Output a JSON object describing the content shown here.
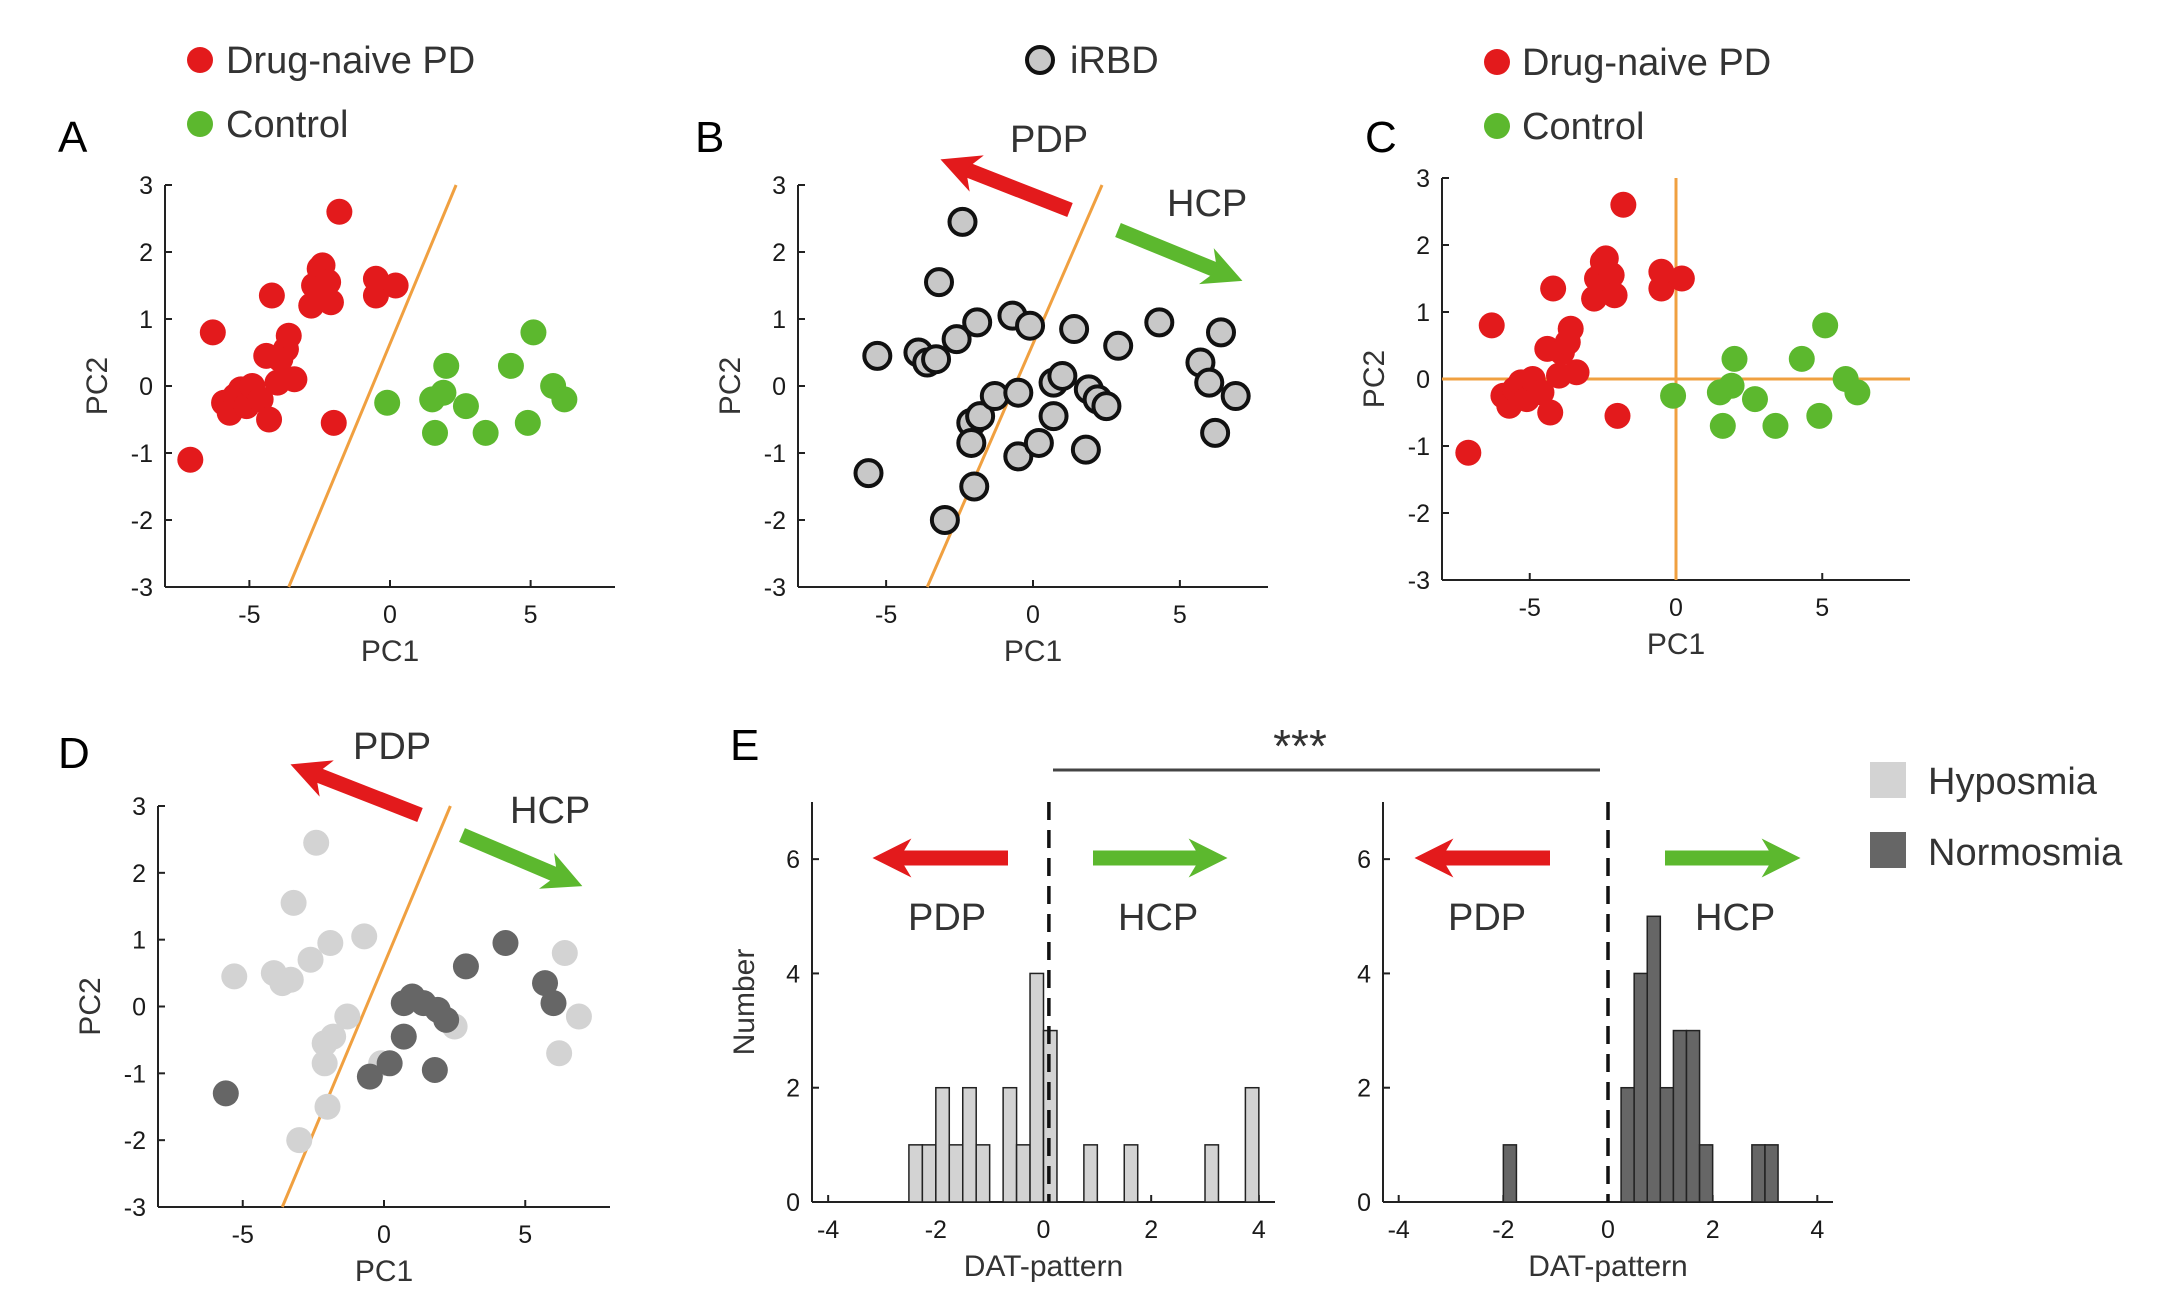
{
  "colors": {
    "pd": "#e31a1c",
    "control": "#5cb82e",
    "irbd_fill": "#c8c8c8",
    "irbd_edge": "#111111",
    "hyposmia": "#d3d3d3",
    "normosmia": "#666666",
    "orange_line": "#f0a040",
    "axis": "#222222"
  },
  "legends": {
    "top_left": [
      {
        "label": "Drug-naive PD",
        "color": "#e31a1c"
      },
      {
        "label": "Control",
        "color": "#5cb82e"
      }
    ],
    "top_center": [
      {
        "label": "iRBD",
        "color": "#c8c8c8"
      }
    ],
    "top_right": [
      {
        "label": "Drug-naive PD",
        "color": "#e31a1c"
      },
      {
        "label": "Control",
        "color": "#5cb82e"
      }
    ],
    "right": [
      {
        "label": "Hyposmia",
        "color": "#d3d3d3"
      },
      {
        "label": "Normosmia",
        "color": "#666666"
      }
    ]
  },
  "panel_labels": [
    "A",
    "B",
    "C",
    "D",
    "E"
  ],
  "arrow_labels": {
    "pdp": "PDP",
    "hcp": "HCP"
  },
  "significance": "***",
  "chart_data": [
    {
      "id": "A",
      "type": "scatter",
      "xlabel": "PC1",
      "ylabel": "PC2",
      "xlim": [
        -8,
        8
      ],
      "ylim": [
        -3,
        3
      ],
      "xticks": [
        -5,
        0,
        5
      ],
      "yticks": [
        -3,
        -2,
        -1,
        0,
        1,
        2,
        3
      ],
      "separator_line": [
        [
          -3.6,
          -3
        ],
        [
          2.35,
          3
        ]
      ],
      "series": [
        {
          "name": "Drug-naive PD",
          "color": "#e31a1c",
          "points": [
            [
              -7.1,
              -1.1
            ],
            [
              -6.3,
              0.8
            ],
            [
              -5.9,
              -0.25
            ],
            [
              -5.7,
              -0.4
            ],
            [
              -5.5,
              -0.15
            ],
            [
              -5.3,
              -0.05
            ],
            [
              -5.1,
              -0.3
            ],
            [
              -4.9,
              0.0
            ],
            [
              -4.6,
              -0.2
            ],
            [
              -4.3,
              -0.5
            ],
            [
              -4.4,
              0.45
            ],
            [
              -4.2,
              1.35
            ],
            [
              -4.0,
              0.05
            ],
            [
              -3.9,
              0.4
            ],
            [
              -3.7,
              0.55
            ],
            [
              -3.6,
              0.75
            ],
            [
              -3.4,
              0.1
            ],
            [
              -2.8,
              1.2
            ],
            [
              -2.7,
              1.5
            ],
            [
              -2.5,
              1.75
            ],
            [
              -2.4,
              1.8
            ],
            [
              -2.2,
              1.55
            ],
            [
              -2.1,
              1.25
            ],
            [
              -2.0,
              -0.55
            ],
            [
              -1.8,
              2.6
            ],
            [
              -0.5,
              1.35
            ],
            [
              -0.5,
              1.6
            ],
            [
              0.2,
              1.5
            ]
          ]
        },
        {
          "name": "Control",
          "color": "#5cb82e",
          "points": [
            [
              -0.1,
              -0.25
            ],
            [
              1.5,
              -0.2
            ],
            [
              1.6,
              -0.7
            ],
            [
              1.9,
              -0.1
            ],
            [
              2.0,
              0.3
            ],
            [
              2.7,
              -0.3
            ],
            [
              3.4,
              -0.7
            ],
            [
              4.3,
              0.3
            ],
            [
              4.9,
              -0.55
            ],
            [
              5.1,
              0.8
            ],
            [
              5.8,
              0.0
            ],
            [
              6.2,
              -0.2
            ]
          ]
        }
      ]
    },
    {
      "id": "B",
      "type": "scatter",
      "xlabel": "PC1",
      "ylabel": "PC2",
      "xlim": [
        -8,
        8
      ],
      "ylim": [
        -3,
        3
      ],
      "xticks": [
        -5,
        0,
        5
      ],
      "yticks": [
        -3,
        -2,
        -1,
        0,
        1,
        2,
        3
      ],
      "separator_line": [
        [
          -3.6,
          -3
        ],
        [
          2.35,
          3
        ]
      ],
      "series": [
        {
          "name": "iRBD",
          "color": "#c8c8c8",
          "points": [
            [
              -5.6,
              -1.3
            ],
            [
              -5.3,
              0.45
            ],
            [
              -3.9,
              0.5
            ],
            [
              -3.6,
              0.35
            ],
            [
              -3.3,
              0.4
            ],
            [
              -3.2,
              1.55
            ],
            [
              -3.0,
              -2.0
            ],
            [
              -2.6,
              0.7
            ],
            [
              -2.4,
              2.45
            ],
            [
              -2.1,
              -0.55
            ],
            [
              -2.1,
              -0.85
            ],
            [
              -2.0,
              -1.5
            ],
            [
              -1.9,
              0.95
            ],
            [
              -1.8,
              -0.45
            ],
            [
              -1.3,
              -0.15
            ],
            [
              -0.7,
              1.05
            ],
            [
              -0.5,
              -1.05
            ],
            [
              -0.5,
              -0.1
            ],
            [
              -0.1,
              0.9
            ],
            [
              0.2,
              -0.85
            ],
            [
              0.7,
              -0.45
            ],
            [
              0.7,
              0.05
            ],
            [
              1.0,
              0.15
            ],
            [
              1.4,
              0.85
            ],
            [
              1.8,
              -0.95
            ],
            [
              1.9,
              -0.05
            ],
            [
              2.2,
              -0.2
            ],
            [
              2.5,
              -0.3
            ],
            [
              2.9,
              0.6
            ],
            [
              4.3,
              0.95
            ],
            [
              5.7,
              0.35
            ],
            [
              6.0,
              0.05
            ],
            [
              6.2,
              -0.7
            ],
            [
              6.4,
              0.8
            ],
            [
              6.9,
              -0.15
            ]
          ]
        }
      ]
    },
    {
      "id": "C",
      "type": "scatter",
      "xlabel": "PC1",
      "ylabel": "PC2",
      "xlim": [
        -8,
        8
      ],
      "ylim": [
        -3,
        3
      ],
      "xticks": [
        -5,
        0,
        5
      ],
      "yticks": [
        -3,
        -2,
        -1,
        0,
        1,
        2,
        3
      ],
      "reference_lines": {
        "x": 0,
        "y": 0
      },
      "series": [
        {
          "name": "Drug-naive PD",
          "color": "#e31a1c",
          "points": [
            [
              -7.1,
              -1.1
            ],
            [
              -6.3,
              0.8
            ],
            [
              -5.9,
              -0.25
            ],
            [
              -5.7,
              -0.4
            ],
            [
              -5.5,
              -0.15
            ],
            [
              -5.3,
              -0.05
            ],
            [
              -5.1,
              -0.3
            ],
            [
              -4.9,
              0.0
            ],
            [
              -4.6,
              -0.2
            ],
            [
              -4.3,
              -0.5
            ],
            [
              -4.4,
              0.45
            ],
            [
              -4.2,
              1.35
            ],
            [
              -4.0,
              0.05
            ],
            [
              -3.9,
              0.4
            ],
            [
              -3.7,
              0.55
            ],
            [
              -3.6,
              0.75
            ],
            [
              -3.4,
              0.1
            ],
            [
              -2.8,
              1.2
            ],
            [
              -2.7,
              1.5
            ],
            [
              -2.5,
              1.75
            ],
            [
              -2.4,
              1.8
            ],
            [
              -2.2,
              1.55
            ],
            [
              -2.1,
              1.25
            ],
            [
              -2.0,
              -0.55
            ],
            [
              -1.8,
              2.6
            ],
            [
              -0.5,
              1.35
            ],
            [
              -0.5,
              1.6
            ],
            [
              0.2,
              1.5
            ]
          ]
        },
        {
          "name": "Control",
          "color": "#5cb82e",
          "points": [
            [
              -0.1,
              -0.25
            ],
            [
              1.5,
              -0.2
            ],
            [
              1.6,
              -0.7
            ],
            [
              1.9,
              -0.1
            ],
            [
              2.0,
              0.3
            ],
            [
              2.7,
              -0.3
            ],
            [
              3.4,
              -0.7
            ],
            [
              4.3,
              0.3
            ],
            [
              4.9,
              -0.55
            ],
            [
              5.1,
              0.8
            ],
            [
              5.8,
              0.0
            ],
            [
              6.2,
              -0.2
            ]
          ]
        }
      ]
    },
    {
      "id": "D",
      "type": "scatter",
      "xlabel": "PC1",
      "ylabel": "PC2",
      "xlim": [
        -8,
        8
      ],
      "ylim": [
        -3,
        3
      ],
      "xticks": [
        -5,
        0,
        5
      ],
      "yticks": [
        -3,
        -2,
        -1,
        0,
        1,
        2,
        3
      ],
      "separator_line": [
        [
          -3.6,
          -3
        ],
        [
          2.35,
          3
        ]
      ],
      "series": [
        {
          "name": "Hyposmia",
          "color": "#d3d3d3",
          "points": [
            [
              -5.3,
              0.45
            ],
            [
              -3.9,
              0.5
            ],
            [
              -3.6,
              0.35
            ],
            [
              -3.3,
              0.4
            ],
            [
              -3.2,
              1.55
            ],
            [
              -3.0,
              -2.0
            ],
            [
              -2.6,
              0.7
            ],
            [
              -2.4,
              2.45
            ],
            [
              -2.1,
              -0.55
            ],
            [
              -2.1,
              -0.85
            ],
            [
              -2.0,
              -1.5
            ],
            [
              -1.9,
              0.95
            ],
            [
              -1.8,
              -0.45
            ],
            [
              -1.3,
              -0.15
            ],
            [
              -0.7,
              1.05
            ],
            [
              -0.1,
              -0.85
            ],
            [
              2.5,
              -0.3
            ],
            [
              6.2,
              -0.7
            ],
            [
              6.4,
              0.8
            ],
            [
              6.9,
              -0.15
            ]
          ]
        },
        {
          "name": "Normosmia",
          "color": "#666666",
          "points": [
            [
              -5.6,
              -1.3
            ],
            [
              -0.5,
              -1.05
            ],
            [
              0.2,
              -0.85
            ],
            [
              0.7,
              -0.45
            ],
            [
              0.7,
              0.05
            ],
            [
              1.0,
              0.15
            ],
            [
              1.4,
              0.05
            ],
            [
              1.8,
              -0.95
            ],
            [
              1.9,
              -0.05
            ],
            [
              2.2,
              -0.2
            ],
            [
              2.9,
              0.6
            ],
            [
              4.3,
              0.95
            ],
            [
              5.7,
              0.35
            ],
            [
              6.0,
              0.05
            ]
          ]
        }
      ]
    },
    {
      "id": "E-left",
      "type": "bar",
      "xlabel": "DAT-pattern",
      "ylabel": "Number",
      "xlim": [
        -4.3,
        4.3
      ],
      "ylim": [
        0,
        7
      ],
      "xticks": [
        -4,
        -2,
        0,
        2,
        4
      ],
      "yticks": [
        0,
        2,
        4,
        6
      ],
      "bin_width": 0.25,
      "divider_x": 0.1,
      "series": [
        {
          "name": "Hyposmia",
          "color": "#d3d3d3",
          "bins": [
            [
              -2.5,
              1
            ],
            [
              -2.25,
              1
            ],
            [
              -2.0,
              2
            ],
            [
              -1.75,
              1
            ],
            [
              -1.5,
              2
            ],
            [
              -1.25,
              1
            ],
            [
              -1.0,
              0
            ],
            [
              -0.75,
              2
            ],
            [
              -0.5,
              1
            ],
            [
              -0.25,
              4
            ],
            [
              0.0,
              3
            ],
            [
              0.75,
              1
            ],
            [
              1.5,
              1
            ],
            [
              3.0,
              1
            ],
            [
              3.75,
              2
            ]
          ]
        }
      ]
    },
    {
      "id": "E-right",
      "type": "bar",
      "xlabel": "DAT-pattern",
      "ylabel": "",
      "xlim": [
        -4.3,
        4.3
      ],
      "ylim": [
        0,
        7
      ],
      "xticks": [
        -4,
        -2,
        0,
        2,
        4
      ],
      "yticks": [
        0,
        2,
        4,
        6
      ],
      "bin_width": 0.25,
      "divider_x": 0.0,
      "series": [
        {
          "name": "Normosmia",
          "color": "#666666",
          "bins": [
            [
              -2.0,
              1
            ],
            [
              0.25,
              2
            ],
            [
              0.5,
              4
            ],
            [
              0.75,
              5
            ],
            [
              1.0,
              2
            ],
            [
              1.25,
              3
            ],
            [
              1.5,
              3
            ],
            [
              1.75,
              1
            ],
            [
              2.75,
              1
            ],
            [
              3.0,
              1
            ]
          ]
        }
      ]
    }
  ]
}
